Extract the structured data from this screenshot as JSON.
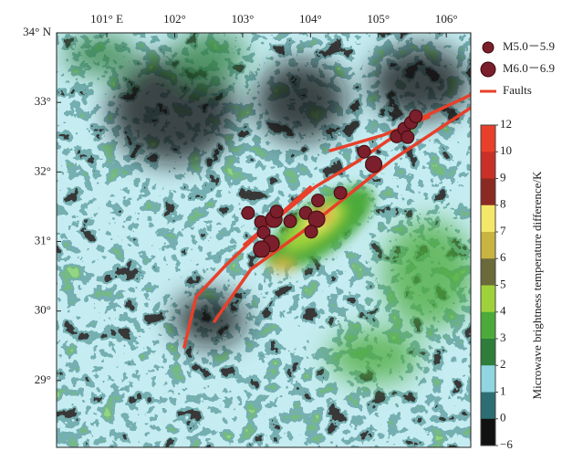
{
  "map": {
    "xlim": [
      100.26,
      106.36
    ],
    "ylim": [
      28.04,
      34
    ],
    "lon_ticks": [
      {
        "value": 101,
        "label": "101° E"
      },
      {
        "value": 102,
        "label": "102°"
      },
      {
        "value": 103,
        "label": "103°"
      },
      {
        "value": 104,
        "label": "104°"
      },
      {
        "value": 105,
        "label": "105°"
      },
      {
        "value": 106,
        "label": "106°"
      }
    ],
    "lat_ticks": [
      {
        "value": 34,
        "label": "34° N"
      },
      {
        "value": 33,
        "label": "33°"
      },
      {
        "value": 32,
        "label": "32°"
      },
      {
        "value": 31,
        "label": "31°"
      },
      {
        "value": 30,
        "label": "30°"
      },
      {
        "value": 29,
        "label": "29°"
      }
    ],
    "legend": [
      {
        "label": "M5.0－5.9",
        "color": "#7a1f2b"
      },
      {
        "label": "M6.0－6.9",
        "color": "#7a1f2b"
      },
      {
        "label": "Faults",
        "color": "#e8402a"
      }
    ],
    "events": [
      {
        "lon": 103.08,
        "lat": 31.41,
        "class": 0
      },
      {
        "lon": 103.27,
        "lat": 31.28,
        "class": 0
      },
      {
        "lon": 103.46,
        "lat": 31.32,
        "class": 1
      },
      {
        "lon": 103.5,
        "lat": 31.43,
        "class": 0
      },
      {
        "lon": 103.31,
        "lat": 31.13,
        "class": 0
      },
      {
        "lon": 103.42,
        "lat": 30.97,
        "class": 1
      },
      {
        "lon": 103.28,
        "lat": 30.89,
        "class": 1
      },
      {
        "lon": 103.7,
        "lat": 31.29,
        "class": 0
      },
      {
        "lon": 103.93,
        "lat": 31.41,
        "class": 0
      },
      {
        "lon": 104.11,
        "lat": 31.59,
        "class": 0
      },
      {
        "lon": 104.09,
        "lat": 31.32,
        "class": 1
      },
      {
        "lon": 104.01,
        "lat": 31.14,
        "class": 0
      },
      {
        "lon": 104.44,
        "lat": 31.7,
        "class": 0
      },
      {
        "lon": 104.79,
        "lat": 32.29,
        "class": 0
      },
      {
        "lon": 104.93,
        "lat": 32.11,
        "class": 1
      },
      {
        "lon": 105.27,
        "lat": 32.51,
        "class": 0
      },
      {
        "lon": 105.38,
        "lat": 32.62,
        "class": 0
      },
      {
        "lon": 105.48,
        "lat": 32.71,
        "class": 0
      },
      {
        "lon": 105.55,
        "lat": 32.8,
        "class": 0
      },
      {
        "lon": 105.43,
        "lat": 32.5,
        "class": 0
      }
    ]
  },
  "colorbar": {
    "title": "Microwave brightness temperature difference/K",
    "ticks": [
      12,
      10,
      9,
      8,
      7,
      6,
      5,
      4,
      3,
      2,
      1,
      0,
      {
        "value": -6,
        "label": "−6"
      }
    ],
    "colors": [
      "#e8402a",
      "#c83028",
      "#8b2a22",
      "#f3e86a",
      "#c8b440",
      "#6b6a3a",
      "#9fd23a",
      "#4caa3a",
      "#2e7d3a",
      "#8fd6e0",
      "#2e6e72",
      "#111111"
    ]
  }
}
